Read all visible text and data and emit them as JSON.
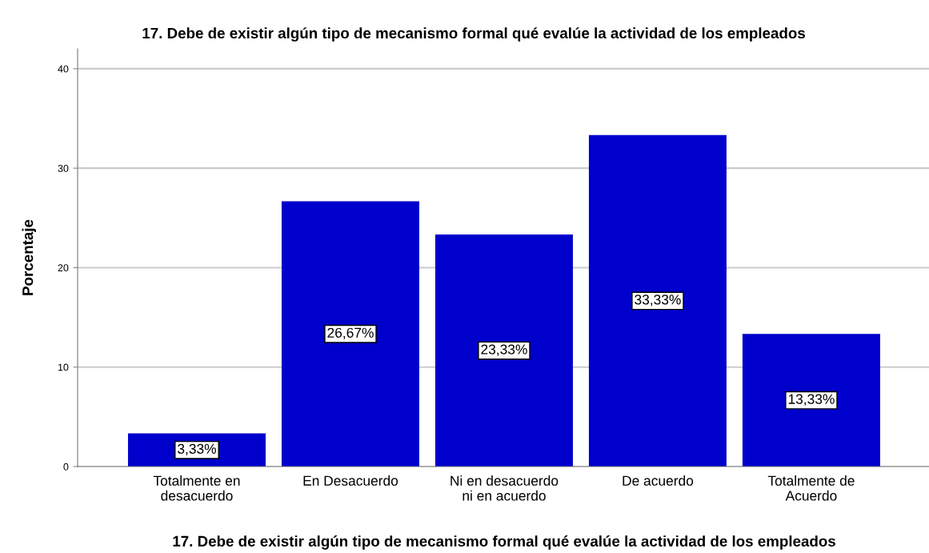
{
  "chart_data": {
    "type": "bar",
    "title": "17. Debe de existir algún tipo de mecanismo formal qué evalúe la actividad de los empleados",
    "xlabel": "17. Debe de existir algún tipo de mecanismo formal qué evalúe la actividad de los empleados",
    "ylabel": "Porcentaje",
    "categories": [
      "Totalmente en\ndesacuerdo",
      "En Desacuerdo",
      "Ni en desacuerdo\nni en acuerdo",
      "De acuerdo",
      "Totalmente de\nAcuerdo"
    ],
    "values": [
      3.33,
      26.67,
      23.33,
      33.33,
      13.33
    ],
    "value_labels": [
      "3,33%",
      "26,67%",
      "23,33%",
      "33,33%",
      "13,33%"
    ],
    "color": "#0000cc",
    "ylim": [
      0,
      42
    ],
    "yticks": [
      0,
      10,
      20,
      30,
      40
    ],
    "grid": "y"
  }
}
